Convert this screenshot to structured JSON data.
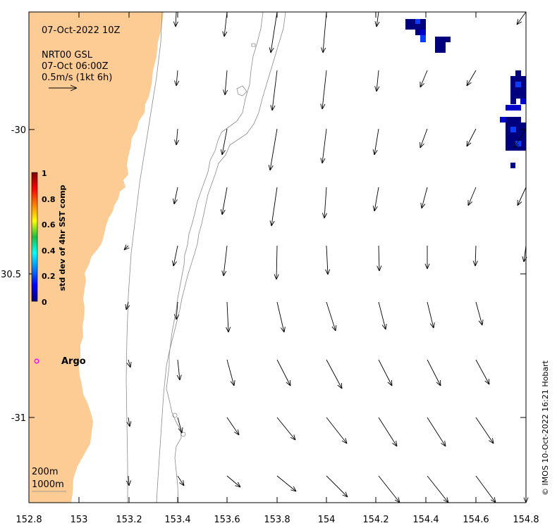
{
  "map": {
    "timestamp": "07-Oct-2022 10Z",
    "source_line1": "NRT00 GSL",
    "source_line2": "07-Oct 06:00Z",
    "scale_label": "0.5m/s (1kt 6h)",
    "x_ticks": [
      "152.8",
      "153",
      "153.2",
      "153.4",
      "153.6",
      "153.8",
      "154",
      "154.2",
      "154.4",
      "154.6",
      "154.8"
    ],
    "y_ticks": [
      "-30",
      "30.5",
      "-31"
    ],
    "colorbar_title": "std dev of 4hr SST comp",
    "colorbar_ticks": [
      "1",
      "0.8",
      "0.6",
      "0.4",
      "0.2",
      "0"
    ],
    "argo_label": "Argo",
    "contour_label_200": "200m",
    "contour_label_1000": "1000m",
    "credit": "© IMOS 10-Oct-2022 16:21 Hobart",
    "colors": {
      "land": "#fdcc94",
      "argo_marker": "#ff00ff",
      "sst_dark": "#00007f",
      "sst_mid": "#0000cc",
      "sst_light": "#0a3cff"
    },
    "current_vectors_ms": [
      {
        "lon": 153.4,
        "lat": -29.6,
        "u": 0.0,
        "v": -0.33
      },
      {
        "lon": 153.6,
        "lat": -29.6,
        "u": 0.02,
        "v": -0.35
      },
      {
        "lon": 153.8,
        "lat": -29.6,
        "u": -0.05,
        "v": -0.45
      },
      {
        "lon": 154.0,
        "lat": -29.6,
        "u": -0.02,
        "v": -0.45
      },
      {
        "lon": 154.8,
        "lat": -29.6,
        "u": -0.15,
        "v": -0.12
      }
    ]
  }
}
